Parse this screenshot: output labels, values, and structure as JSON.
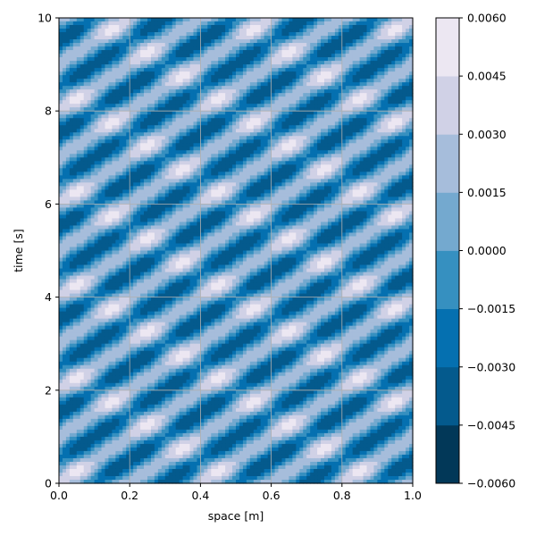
{
  "chart_data": {
    "type": "heatmap",
    "subtype": "filled-contour",
    "title": "",
    "xlabel": "space [m]",
    "ylabel": "time [s]",
    "xlim": [
      0,
      1
    ],
    "ylim": [
      0,
      10
    ],
    "x_ticks": [
      "0.0",
      "0.2",
      "0.4",
      "0.6",
      "0.8",
      "1.0"
    ],
    "y_ticks": [
      "0",
      "2",
      "4",
      "6",
      "8",
      "10"
    ],
    "grid": true,
    "colormap": "PuBu_r",
    "colorbar": {
      "ticks": [
        "0.0060",
        "0.0045",
        "0.0030",
        "0.0015",
        "0.0000",
        "−0.0015",
        "−0.0030",
        "−0.0045",
        "−0.0060"
      ],
      "range": [
        -0.006,
        0.006
      ],
      "levels": [
        -0.006,
        -0.0045,
        -0.003,
        -0.0015,
        0.0,
        0.0015,
        0.003,
        0.0045,
        0.006
      ],
      "colors": [
        "#023858",
        "#045a8d",
        "#0570b0",
        "#3690c0",
        "#74a9cf",
        "#a6bddb",
        "#d0d1e6",
        "#ece7f2"
      ]
    },
    "field": {
      "description_of_pattern": "alternating column cells in space (~0.1 m spacing) with diagonal banding over time, period ~1 s",
      "x_cells": [
        0.1,
        0.2,
        0.4,
        0.6,
        0.8,
        0.9
      ],
      "period_s": 1.0
    }
  }
}
